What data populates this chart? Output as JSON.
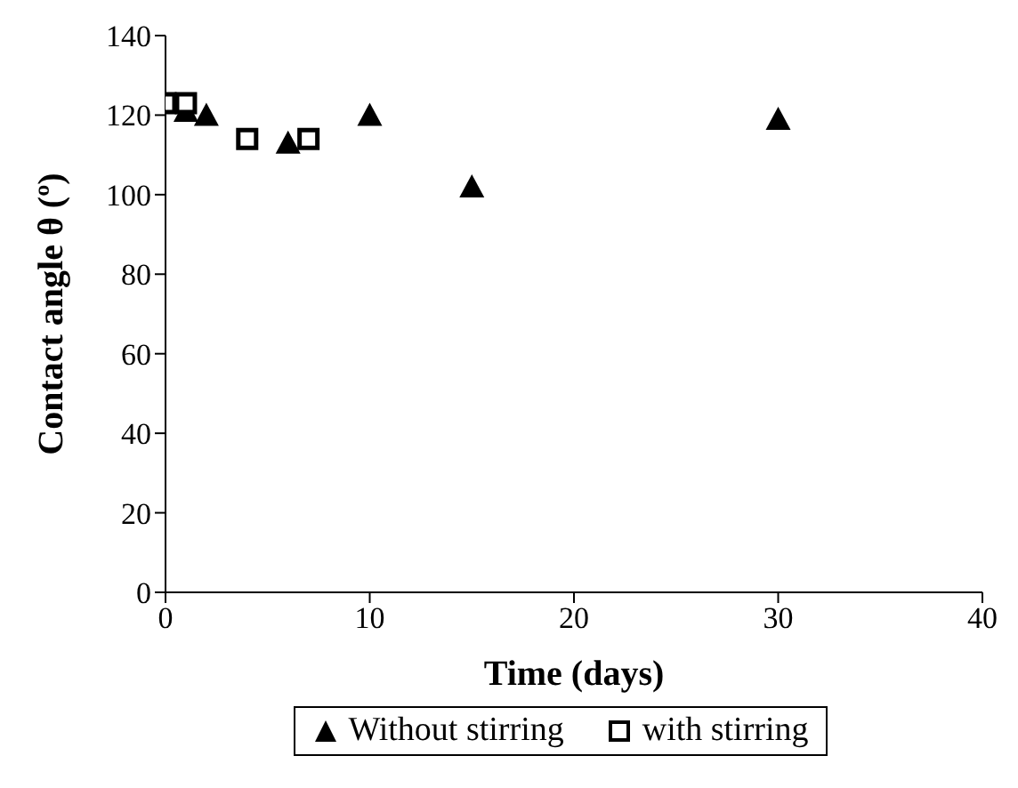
{
  "chart_data": {
    "type": "scatter",
    "xlabel": "Time (days)",
    "ylabel": "Contact angle θ (º)",
    "xlim": [
      0,
      40
    ],
    "xticks": [
      0,
      10,
      20,
      30,
      40
    ],
    "ylim": [
      0,
      140
    ],
    "yticks": [
      0,
      20,
      40,
      60,
      80,
      100,
      120,
      140
    ],
    "grid": false,
    "legend": "bottom",
    "series": [
      {
        "name": "Without stirring",
        "color": "#000000",
        "marker": "triangle",
        "x": [
          1,
          2,
          6,
          10,
          15,
          30
        ],
        "values": [
          121,
          120,
          113,
          120,
          102,
          119
        ]
      },
      {
        "name": "with stirring",
        "color": "#000000",
        "marker": "square",
        "x": [
          0,
          1,
          4,
          7
        ],
        "values": [
          123,
          123,
          114,
          114
        ]
      }
    ]
  }
}
